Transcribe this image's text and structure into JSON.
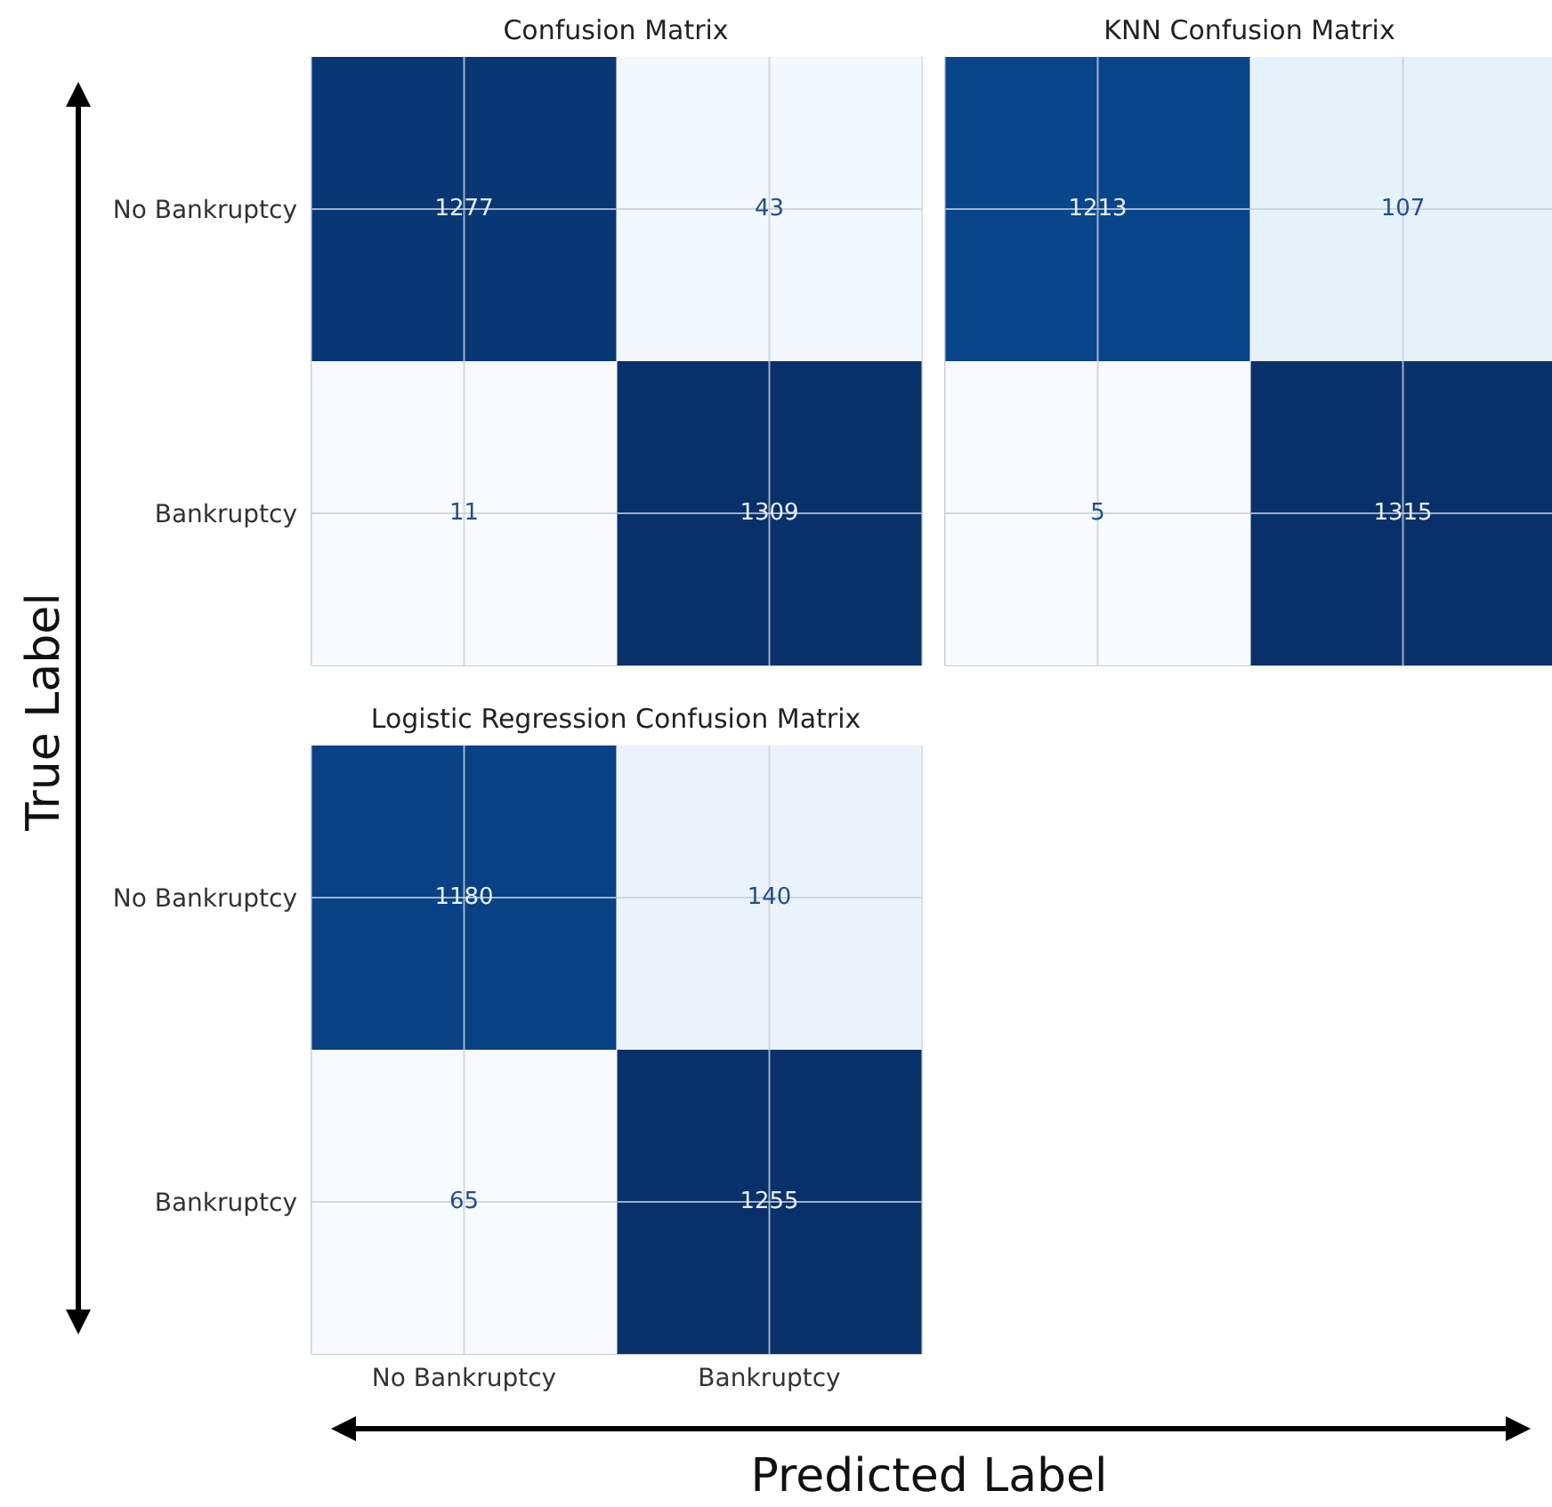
{
  "chart_data": [
    {
      "type": "heatmap",
      "title": "Confusion Matrix",
      "categories": [
        null,
        null
      ],
      "y_categories": [
        "No Bankruptcy",
        "Bankruptcy"
      ],
      "cells": [
        [
          1277,
          43
        ],
        [
          11,
          1309
        ]
      ],
      "grid": true,
      "data_labels": true
    },
    {
      "type": "heatmap",
      "title": "KNN Confusion Matrix",
      "categories": [
        null,
        null
      ],
      "y_categories": [
        null,
        null
      ],
      "cells": [
        [
          1213,
          107
        ],
        [
          5,
          1315
        ]
      ],
      "grid": true,
      "data_labels": true
    },
    {
      "type": "heatmap",
      "title": "Logistic Regression Confusion Matrix",
      "categories": [
        "No Bankruptcy",
        "Bankruptcy"
      ],
      "y_categories": [
        "No Bankruptcy",
        "Bankruptcy"
      ],
      "cells": [
        [
          1180,
          140
        ],
        [
          65,
          1255
        ]
      ],
      "grid": true,
      "data_labels": true,
      "xlabel": "Predicted Label",
      "ylabel": "True Label"
    }
  ]
}
